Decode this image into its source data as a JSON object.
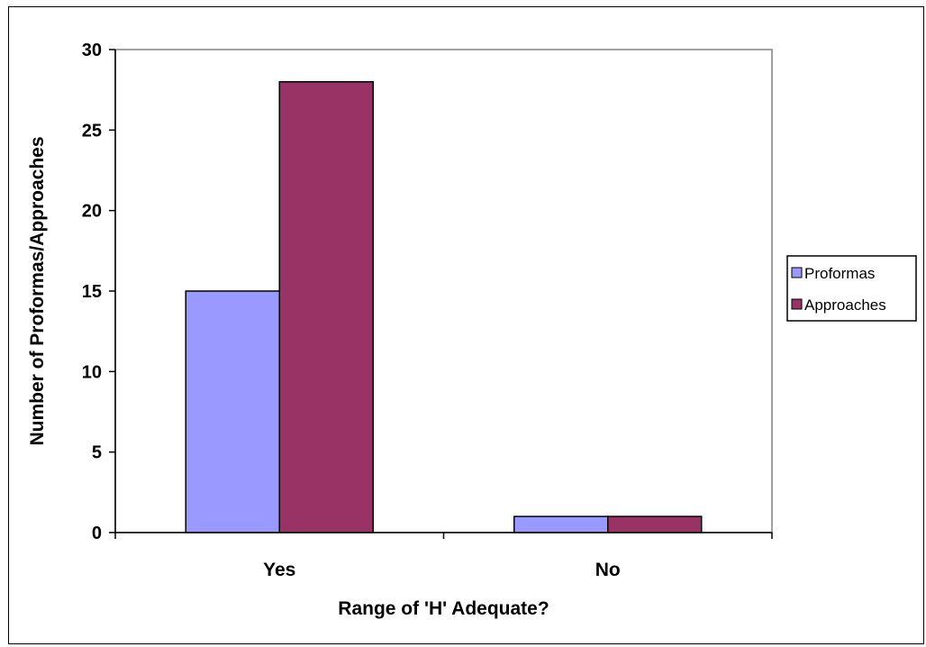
{
  "chart_data": {
    "type": "bar",
    "categories": [
      "Yes",
      "No"
    ],
    "series": [
      {
        "name": "Proformas",
        "values": [
          15,
          1
        ],
        "color": "#9999ff"
      },
      {
        "name": "Approaches",
        "values": [
          28,
          1
        ],
        "color": "#993366"
      }
    ],
    "xlabel": "Range of 'H' Adequate?",
    "ylabel": "Number of Proformas/Approaches",
    "ylim": [
      0,
      30
    ],
    "yticks": [
      0,
      5,
      10,
      15,
      20,
      25,
      30
    ],
    "grid": false,
    "legend_position": "right"
  }
}
